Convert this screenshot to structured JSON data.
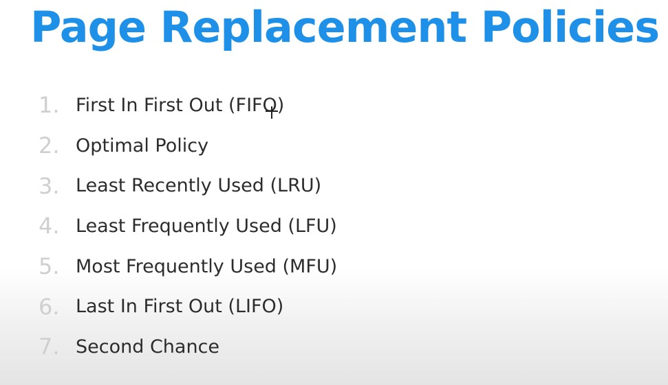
{
  "slide": {
    "title": "Page Replacement Policies",
    "items": [
      {
        "number": "1.",
        "label": "First In First Out (FIFO)"
      },
      {
        "number": "2.",
        "label": "Optimal Policy"
      },
      {
        "number": "3.",
        "label": "Least Recently Used (LRU)"
      },
      {
        "number": "4.",
        "label": "Least Frequently Used (LFU)"
      },
      {
        "number": "5.",
        "label": "Most Frequently Used (MFU)"
      },
      {
        "number": "6.",
        "label": "Last In First Out (LIFO)"
      },
      {
        "number": "7.",
        "label": "Second Chance"
      }
    ]
  },
  "colors": {
    "title": "#1e90e8",
    "number": "#cfcfcf",
    "text": "#2c2c2c"
  },
  "cursor": {
    "icon": "crosshair-cursor-icon"
  }
}
